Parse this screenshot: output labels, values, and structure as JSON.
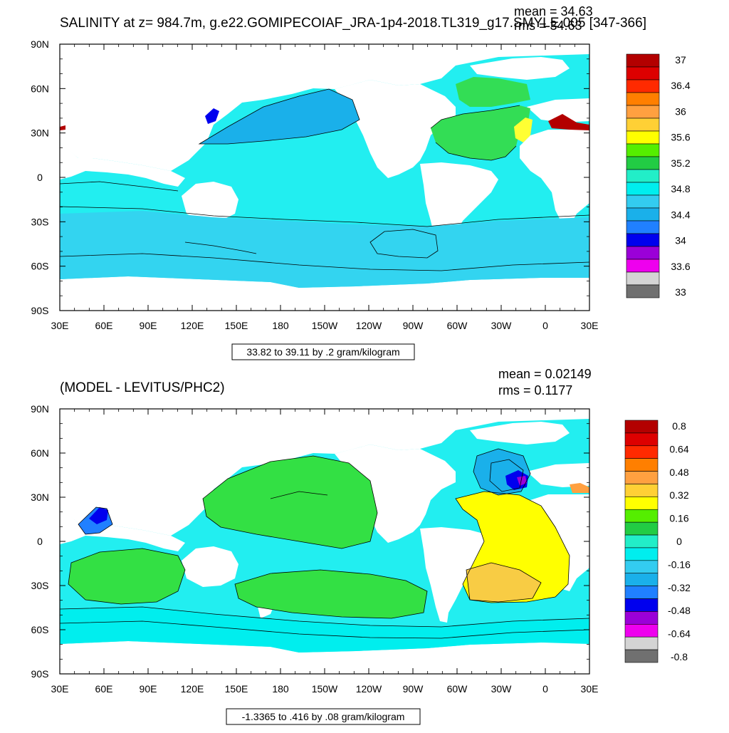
{
  "panels": [
    {
      "title": "SALINITY at z= 984.7m, g.e22.GOMIPECOIAF_JRA-1p4-2018.TL319_g17.SMYLE.005 [347-366]",
      "mean_text": "mean = 34.63",
      "rms_text": "rms = 34.63",
      "info_text": "33.82 to 39.11 by .2 gram/kilogram",
      "x_ticks": [
        "30E",
        "60E",
        "90E",
        "120E",
        "150E",
        "180",
        "150W",
        "120W",
        "90W",
        "60W",
        "30W",
        "0",
        "30E"
      ],
      "y_ticks": [
        "90N",
        "60N",
        "30N",
        "0",
        "30S",
        "60S",
        "90S"
      ],
      "colorbar_labels": [
        "37",
        "36.4",
        "36",
        "35.6",
        "35.2",
        "34.8",
        "34.4",
        "34",
        "33.6",
        "33"
      ],
      "colorbar_colors": [
        "#b30000",
        "#dd0000",
        "#ff2a00",
        "#ff7f00",
        "#ffa040",
        "#ffd035",
        "#ffff00",
        "#55ee00",
        "#22cc44",
        "#22eec8",
        "#00eeee",
        "#33ccf0",
        "#1ab0ea",
        "#2080ff",
        "#0000ee",
        "#9b00d8",
        "#ee00ee",
        "#d4d4d4",
        "#707070"
      ]
    },
    {
      "title": "(MODEL - LEVITUS/PHC2)",
      "mean_text": "mean = 0.02149",
      "rms_text": "rms = 0.1177",
      "info_text": "-1.3365 to .416 by .08 gram/kilogram",
      "x_ticks": [
        "30E",
        "60E",
        "90E",
        "120E",
        "150E",
        "180",
        "150W",
        "120W",
        "90W",
        "60W",
        "30W",
        "0",
        "30E"
      ],
      "y_ticks": [
        "90N",
        "60N",
        "30N",
        "0",
        "30S",
        "60S",
        "90S"
      ],
      "colorbar_labels": [
        "0.8",
        "0.64",
        "0.48",
        "0.32",
        "0.16",
        "0",
        "-0.16",
        "-0.32",
        "-0.48",
        "-0.64",
        "-0.8"
      ],
      "colorbar_colors": [
        "#b30000",
        "#dd0000",
        "#ff2a00",
        "#ff7f00",
        "#ffa040",
        "#ffd035",
        "#ffff00",
        "#55ee00",
        "#22cc44",
        "#22eec8",
        "#00eeee",
        "#33ccf0",
        "#1ab0ea",
        "#2080ff",
        "#0000ee",
        "#9b00d8",
        "#ee00ee",
        "#d4d4d4",
        "#707070"
      ]
    }
  ],
  "colors": {
    "ocean_main": "#22eef0",
    "ocean_deep": "#33d4f0",
    "pacific_north": "#1ab0ea",
    "atlantic_green": "#33dd55",
    "atlantic_yellow": "#ffff33",
    "diff_green": "#33e044",
    "diff_yellow": "#ffff00",
    "diff_orange": "#f8cc44",
    "med_red": "#b30000",
    "labrador_blue": "#0000ee"
  }
}
